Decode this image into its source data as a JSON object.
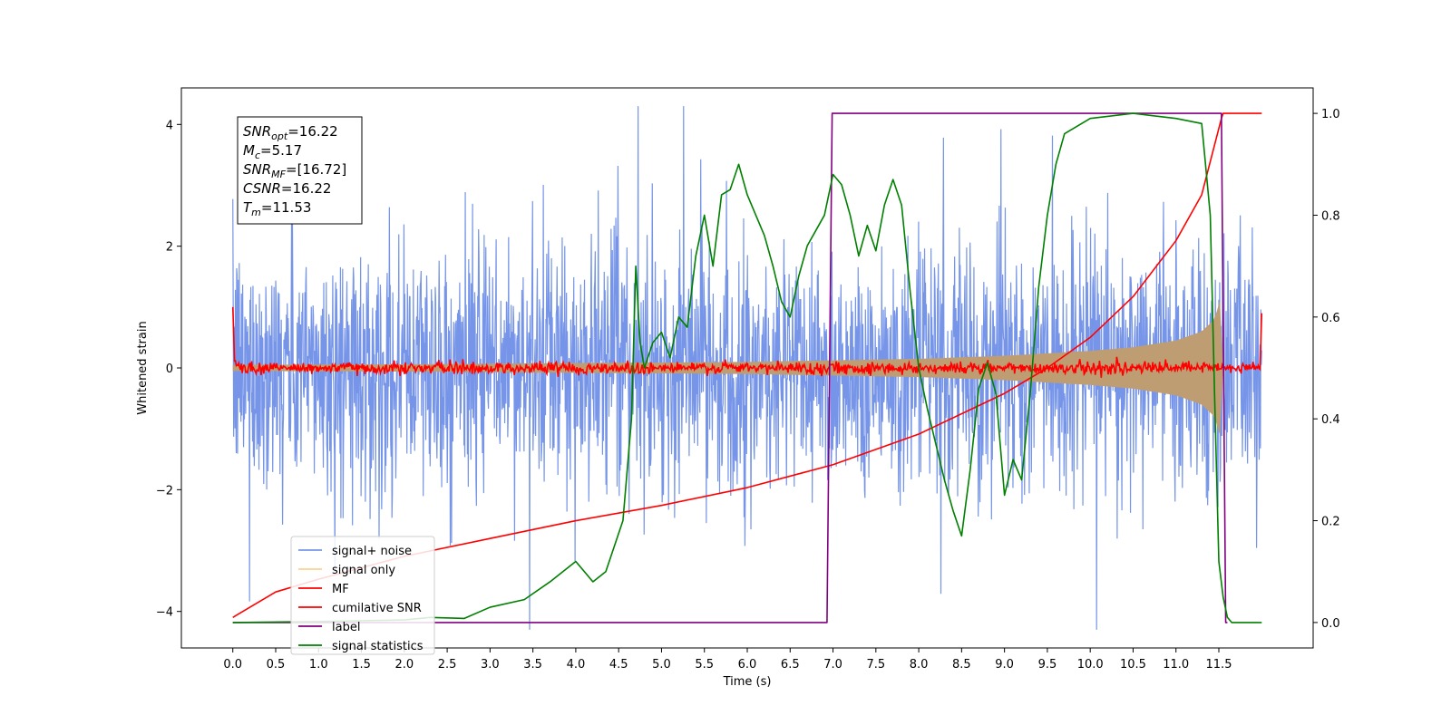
{
  "chart_data": {
    "type": "line",
    "title": "",
    "xlabel": "Time (s)",
    "ylabel": "Whitened strain",
    "y2label": "",
    "xlim": [
      -0.6,
      12.6
    ],
    "ylim": [
      -4.6,
      4.6
    ],
    "y2lim": [
      -0.05,
      1.05
    ],
    "xticks": [
      0.0,
      0.5,
      1.0,
      1.5,
      2.0,
      2.5,
      3.0,
      3.5,
      4.0,
      4.5,
      5.0,
      5.5,
      6.0,
      6.5,
      7.0,
      7.5,
      8.0,
      8.5,
      9.0,
      9.5,
      10.0,
      10.5,
      11.0,
      11.5
    ],
    "xtick_labels": [
      "0.0",
      "0.5",
      "1.0",
      "1.5",
      "2.0",
      "2.5",
      "3.0",
      "3.5",
      "4.0",
      "4.5",
      "5.0",
      "5.5",
      "6.0",
      "6.5",
      "7.0",
      "7.5",
      "8.0",
      "8.5",
      "9.0",
      "9.5",
      "10.0",
      "10.5",
      "11.0",
      "11.5"
    ],
    "yticks": [
      -4,
      -2,
      0,
      2,
      4
    ],
    "ytick_labels": [
      "−4",
      "−2",
      "0",
      "2",
      "4"
    ],
    "y2ticks": [
      0.0,
      0.2,
      0.4,
      0.6,
      0.8,
      1.0
    ],
    "y2tick_labels": [
      "0.0",
      "0.2",
      "0.4",
      "0.6",
      "0.8",
      "1.0"
    ],
    "grid": false,
    "legend_position": "lower-left",
    "series": [
      {
        "name": "signal+ noise",
        "axis": "left",
        "color": "#6a8ce6",
        "kind": "noise",
        "t_range": [
          0.0,
          12.0
        ],
        "amplitude_std": 1.0,
        "sample_count": 2400
      },
      {
        "name": "signal only",
        "axis": "left",
        "color": "#f5c066",
        "kind": "chirp",
        "t_range": [
          0.0,
          11.55
        ],
        "envelope_t": [
          0.0,
          2.0,
          4.0,
          6.0,
          8.0,
          9.0,
          10.0,
          10.5,
          11.0,
          11.3,
          11.45,
          11.53,
          11.55
        ],
        "envelope_amp": [
          0.05,
          0.06,
          0.08,
          0.1,
          0.15,
          0.2,
          0.28,
          0.34,
          0.45,
          0.6,
          0.8,
          1.2,
          0.0
        ]
      },
      {
        "name": "MF",
        "axis": "left",
        "color": "#ff0000",
        "kind": "flat-noise",
        "t_range": [
          0.0,
          12.0
        ],
        "start_value": 1.0,
        "end_value": 0.9,
        "amplitude_std": 0.05
      },
      {
        "name": "cumilative SNR",
        "axis": "right",
        "color": "#ff0000",
        "x": [
          0.0,
          0.05,
          0.5,
          1.0,
          2.0,
          3.0,
          4.0,
          5.0,
          6.0,
          7.0,
          8.0,
          9.0,
          9.5,
          10.0,
          10.5,
          11.0,
          11.3,
          11.53,
          11.55,
          12.0
        ],
        "y": [
          0.01,
          0.015,
          0.06,
          0.085,
          0.13,
          0.165,
          0.2,
          0.23,
          0.265,
          0.31,
          0.37,
          0.45,
          0.5,
          0.56,
          0.64,
          0.75,
          0.84,
          0.99,
          1.0,
          1.0
        ]
      },
      {
        "name": "label",
        "axis": "right",
        "color": "#800080",
        "x": [
          0.0,
          6.93,
          6.99,
          11.53,
          11.58,
          11.6
        ],
        "y": [
          0.0,
          0.0,
          1.0,
          1.0,
          0.0,
          0.0
        ]
      },
      {
        "name": "signal statistics",
        "axis": "right",
        "color": "#008000",
        "x": [
          0.0,
          1.0,
          2.0,
          2.3,
          2.7,
          3.0,
          3.4,
          3.7,
          4.0,
          4.2,
          4.35,
          4.45,
          4.55,
          4.65,
          4.7,
          4.75,
          4.8,
          4.9,
          5.0,
          5.1,
          5.2,
          5.3,
          5.4,
          5.5,
          5.6,
          5.7,
          5.8,
          5.9,
          6.0,
          6.1,
          6.2,
          6.3,
          6.4,
          6.5,
          6.6,
          6.7,
          6.8,
          6.9,
          7.0,
          7.1,
          7.2,
          7.3,
          7.4,
          7.5,
          7.6,
          7.7,
          7.8,
          7.9,
          8.0,
          8.1,
          8.2,
          8.3,
          8.4,
          8.5,
          8.6,
          8.7,
          8.8,
          8.9,
          9.0,
          9.1,
          9.2,
          9.3,
          9.4,
          9.5,
          9.6,
          9.7,
          10.0,
          10.5,
          11.0,
          11.3,
          11.4,
          11.45,
          11.5,
          11.55,
          11.6,
          11.65,
          11.7,
          12.0
        ],
        "y": [
          0.0,
          0.002,
          0.005,
          0.01,
          0.008,
          0.03,
          0.045,
          0.08,
          0.12,
          0.08,
          0.1,
          0.15,
          0.2,
          0.4,
          0.7,
          0.55,
          0.5,
          0.55,
          0.57,
          0.52,
          0.6,
          0.58,
          0.72,
          0.8,
          0.7,
          0.84,
          0.85,
          0.9,
          0.84,
          0.8,
          0.76,
          0.7,
          0.63,
          0.6,
          0.68,
          0.74,
          0.77,
          0.8,
          0.88,
          0.86,
          0.8,
          0.72,
          0.78,
          0.73,
          0.82,
          0.87,
          0.82,
          0.65,
          0.5,
          0.42,
          0.35,
          0.28,
          0.22,
          0.17,
          0.3,
          0.46,
          0.51,
          0.45,
          0.25,
          0.32,
          0.28,
          0.45,
          0.66,
          0.8,
          0.9,
          0.96,
          0.99,
          1.0,
          0.99,
          0.98,
          0.8,
          0.45,
          0.12,
          0.05,
          0.01,
          0.0,
          0.0,
          0.0
        ]
      }
    ],
    "annotation_lines": [
      {
        "var": "SNR",
        "sub": "opt",
        "value": "=16.22"
      },
      {
        "var": "M",
        "sub": "c",
        "value": "=5.17"
      },
      {
        "var": "SNR",
        "sub": "MF",
        "value": "=[16.72]"
      },
      {
        "var": "CSNR",
        "sub": "",
        "value": "=16.22"
      },
      {
        "var": "T",
        "sub": "m",
        "value": "=11.53"
      }
    ]
  }
}
